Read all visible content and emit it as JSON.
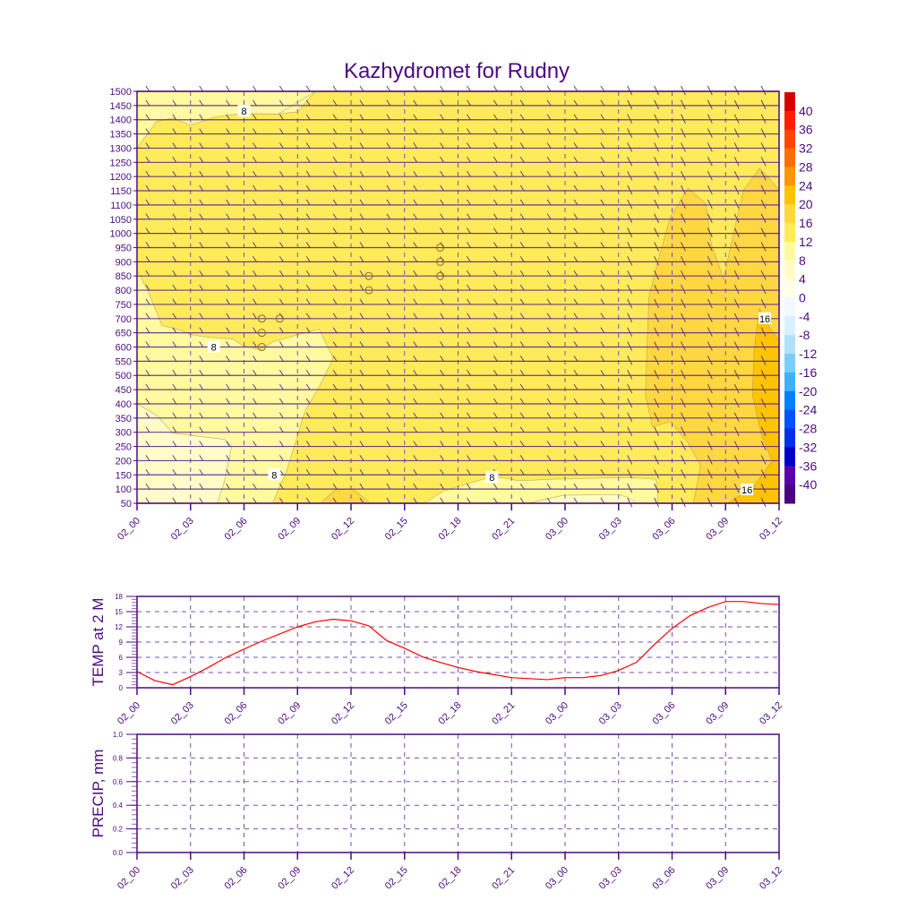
{
  "title": "Kazhydromet for Rudny",
  "time_labels": [
    "02_00",
    "02_03",
    "02_06",
    "02_09",
    "02_12",
    "02_15",
    "02_18",
    "02_21",
    "03_00",
    "03_03",
    "03_06",
    "03_09",
    "03_12"
  ],
  "colors": {
    "axis": "#4b0a82",
    "grid": "#7a4fb0",
    "temp_line": "#ff0000",
    "barb": "#5a2a8a"
  },
  "chart_data": [
    {
      "type": "heatmap",
      "title": "Kazhydromet for Rudny",
      "x_unit": "hours from 02_00",
      "xlim": [
        0,
        36
      ],
      "ylim": [
        50,
        1500
      ],
      "y_ticks": [
        1500,
        1450,
        1400,
        1350,
        1300,
        1250,
        1200,
        1150,
        1100,
        1050,
        1000,
        950,
        900,
        850,
        800,
        750,
        700,
        650,
        600,
        550,
        500,
        450,
        400,
        350,
        300,
        250,
        200,
        150,
        100,
        50
      ],
      "base_band": "12-16",
      "colorbar": {
        "labels": [
          "40",
          "36",
          "32",
          "28",
          "24",
          "20",
          "16",
          "12",
          "8",
          "4",
          "0",
          "-4",
          "-8",
          "-12",
          "-16",
          "-20",
          "-24",
          "-28",
          "-32",
          "-36",
          "-40"
        ],
        "colors": [
          "#d50000",
          "#ff1e00",
          "#ff4600",
          "#ff6e00",
          "#ff9600",
          "#ffc400",
          "#ffd740",
          "#ffeb5a",
          "#fff9a0",
          "#fffcc8",
          "#fffee6",
          "#f2f8ff",
          "#d8f0ff",
          "#b0e0fa",
          "#7ccefa",
          "#40b0fa",
          "#0080ff",
          "#0050ff",
          "#0030e6",
          "#0000c8",
          "#5a00aa",
          "#4b0082"
        ]
      },
      "regions": [
        {
          "band": "8-12",
          "color": "#fff9a0",
          "points": [
            [
              0,
              1500
            ],
            [
              10,
              1500
            ],
            [
              9,
              1428
            ],
            [
              7.9,
              1420
            ],
            [
              5.9,
              1422
            ],
            [
              4.4,
              1425
            ],
            [
              3,
              1440
            ],
            [
              3,
              1500
            ]
          ]
        },
        {
          "band": "8-12",
          "color": "#fff9a0",
          "points": [
            [
              0,
              1500
            ],
            [
              0,
              1300
            ],
            [
              1.1,
              1394
            ],
            [
              2,
              1406
            ],
            [
              3,
              1381
            ],
            [
              4.4,
              1410
            ],
            [
              5.9,
              1422
            ],
            [
              7.9,
              1420
            ],
            [
              10,
              1500
            ]
          ]
        },
        {
          "band": "8-12",
          "color": "#fff9a0",
          "points": [
            [
              0,
              869
            ],
            [
              0.6,
              800
            ],
            [
              1.4,
              676
            ],
            [
              2.4,
              660
            ],
            [
              3.0,
              644
            ],
            [
              3.9,
              635
            ],
            [
              5.4,
              628
            ],
            [
              5.9,
              606
            ],
            [
              6.9,
              590
            ],
            [
              7.6,
              618
            ],
            [
              9.4,
              650
            ],
            [
              10.2,
              663
            ],
            [
              11.0,
              561
            ],
            [
              10.4,
              482
            ],
            [
              9.4,
              371
            ],
            [
              8.4,
              166
            ],
            [
              7.6,
              50
            ],
            [
              0,
              50
            ]
          ]
        },
        {
          "band": "4-8",
          "color": "#fffcc8",
          "points": [
            [
              0,
              400
            ],
            [
              1.1,
              360
            ],
            [
              2,
              297
            ],
            [
              4.9,
              275
            ],
            [
              5.3,
              250
            ],
            [
              4.9,
              126
            ],
            [
              4.5,
              50
            ],
            [
              0,
              50
            ]
          ]
        },
        {
          "band": "16-20",
          "color": "#ffd740",
          "points": [
            [
              10.3,
              50
            ],
            [
              11.1,
              97
            ],
            [
              12.1,
              100
            ],
            [
              13.1,
              50
            ]
          ]
        },
        {
          "band": "8-12",
          "color": "#fff9a0",
          "points": [
            [
              16.1,
              50
            ],
            [
              17.2,
              94
            ],
            [
              19.4,
              135
            ],
            [
              20.4,
              141
            ],
            [
              21.4,
              129
            ],
            [
              23.4,
              135
            ],
            [
              27.5,
              141
            ],
            [
              29.1,
              135
            ],
            [
              29.2,
              88
            ],
            [
              29.2,
              50
            ]
          ]
        },
        {
          "band": "4-8",
          "color": "#fffcc8",
          "points": [
            [
              21.9,
              50
            ],
            [
              23.9,
              78
            ],
            [
              26.9,
              81
            ],
            [
              27.5,
              72
            ],
            [
              28,
              50
            ]
          ]
        },
        {
          "band": "16-20",
          "color": "#ffd740",
          "points": [
            [
              31.2,
              50
            ],
            [
              31.6,
              181
            ],
            [
              30.9,
              263
            ],
            [
              29.9,
              338
            ],
            [
              28.9,
              319
            ],
            [
              28.5,
              432
            ],
            [
              28.7,
              776
            ],
            [
              29.2,
              901
            ],
            [
              29.9,
              1057
            ],
            [
              30.9,
              1160
            ],
            [
              31.9,
              1104
            ],
            [
              32.2,
              963
            ],
            [
              32.9,
              838
            ],
            [
              33.2,
              931
            ],
            [
              34,
              1151
            ],
            [
              34.9,
              1229
            ],
            [
              35.6,
              1182
            ],
            [
              36,
              1151
            ],
            [
              36,
              50
            ]
          ]
        },
        {
          "band": "20-24",
          "color": "#ffc400",
          "points": [
            [
              34.9,
              735
            ],
            [
              35.5,
              666
            ],
            [
              36,
              625
            ],
            [
              36,
              50
            ],
            [
              33.1,
              50
            ],
            [
              34.5,
              103
            ],
            [
              35.6,
              198
            ],
            [
              35,
              294
            ],
            [
              34.5,
              432
            ],
            [
              34.6,
              591
            ]
          ]
        }
      ],
      "contour_labels": [
        {
          "text": "8",
          "x": 6,
          "y": 1430
        },
        {
          "text": "8",
          "x": 4.3,
          "y": 600
        },
        {
          "text": "8",
          "x": 7.7,
          "y": 150
        },
        {
          "text": "8",
          "x": 19.9,
          "y": 141
        },
        {
          "text": "16",
          "x": 35.2,
          "y": 700
        },
        {
          "text": "16",
          "x": 34.2,
          "y": 97
        }
      ],
      "calm_points": [
        [
          7,
          700
        ],
        [
          8,
          700
        ],
        [
          7,
          650
        ],
        [
          7,
          600
        ],
        [
          13,
          850
        ],
        [
          13,
          800
        ],
        [
          17,
          950
        ],
        [
          17,
          900
        ],
        [
          17,
          850
        ]
      ]
    },
    {
      "type": "line",
      "ylabel": "TEMP at 2 M",
      "ylim": [
        0,
        18
      ],
      "y_ticks": [
        "0",
        "3",
        "6",
        "9",
        "12",
        "15",
        "18"
      ],
      "xlim": [
        0,
        36
      ],
      "x": [
        0,
        1,
        2,
        3,
        4,
        5,
        6,
        7,
        8,
        9,
        10,
        11,
        12,
        13,
        14,
        15,
        16,
        17,
        18,
        19,
        20,
        21,
        22,
        23,
        24,
        25,
        26,
        27,
        28,
        29,
        30,
        31,
        32,
        33,
        34,
        35,
        36
      ],
      "values": [
        3.2,
        1.4,
        0.6,
        2.2,
        4.0,
        6.0,
        7.6,
        9.2,
        10.6,
        12.0,
        13.0,
        13.5,
        13.2,
        12.2,
        9.3,
        7.8,
        6.1,
        5.0,
        4.0,
        3.2,
        2.6,
        2.0,
        1.8,
        1.6,
        2.0,
        2.0,
        2.4,
        3.4,
        5.0,
        8.5,
        11.7,
        14.2,
        15.8,
        17.0,
        17.0,
        16.6,
        16.4
      ]
    },
    {
      "type": "line",
      "ylabel": "PRECIP, mm",
      "ylim": [
        0,
        1
      ],
      "y_ticks": [
        "0.0",
        "0.2",
        "0.4",
        "0.6",
        "0.8",
        "1.0"
      ],
      "xlim": [
        0,
        36
      ],
      "values": []
    }
  ]
}
